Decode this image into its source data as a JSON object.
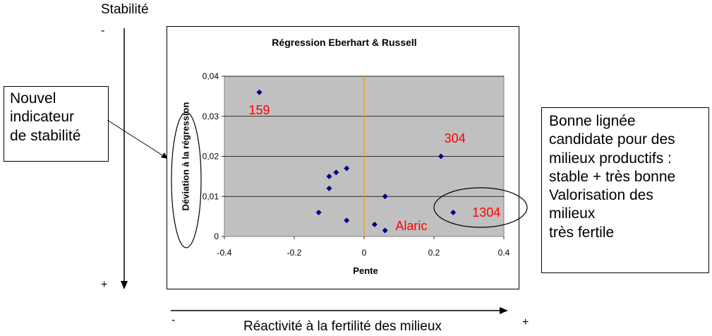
{
  "stability_axis": {
    "title": "Stabilité",
    "minus": "-",
    "plus": "+"
  },
  "reactivity_axis": {
    "label": "Réactivité à la fertilité des milieux",
    "minus": "-",
    "plus": "+"
  },
  "left_callout": {
    "lines": [
      "Nouvel",
      "indicateur",
      "de stabilité"
    ]
  },
  "right_callout": {
    "lines": [
      "Bonne lignée",
      "candidate pour des",
      "milieux productifs :",
      "stable + très bonne",
      "Valorisation des",
      "milieux",
      "très fertile"
    ]
  },
  "colors": {
    "plot_background": "#c0c0c0",
    "marker": "#000080",
    "zero_line": "#ff9900",
    "annotation": "#ff0000"
  },
  "chart_data": {
    "type": "scatter",
    "title": "Régression Eberhart & Russell",
    "xlabel": "Pente",
    "ylabel": "Déviation à la régression",
    "xlim": [
      -0.4,
      0.4
    ],
    "ylim": [
      0,
      0.04
    ],
    "x_ticks": [
      "-0.4",
      "-0.2",
      "0",
      "0.2",
      "0.4"
    ],
    "y_ticks": [
      "0",
      "0,01",
      "0,02",
      "0,03",
      "0,04"
    ],
    "grid": "horizontal",
    "points": [
      {
        "x": -0.3,
        "y": 0.036
      },
      {
        "x": 0.22,
        "y": 0.02
      },
      {
        "x": -0.05,
        "y": 0.017
      },
      {
        "x": -0.08,
        "y": 0.016
      },
      {
        "x": -0.1,
        "y": 0.015
      },
      {
        "x": -0.1,
        "y": 0.012
      },
      {
        "x": 0.06,
        "y": 0.01
      },
      {
        "x": -0.13,
        "y": 0.006
      },
      {
        "x": 0.255,
        "y": 0.006
      },
      {
        "x": -0.05,
        "y": 0.004
      },
      {
        "x": 0.03,
        "y": 0.003
      },
      {
        "x": 0.06,
        "y": 0.0015
      }
    ],
    "annotations": [
      {
        "text": "159",
        "x": -0.3,
        "y": 0.0315
      },
      {
        "text": "304",
        "x": 0.26,
        "y": 0.0245
      },
      {
        "text": "1304",
        "x": 0.35,
        "y": 0.006
      },
      {
        "text": "Alaric",
        "x": 0.135,
        "y": 0.0026
      }
    ]
  }
}
